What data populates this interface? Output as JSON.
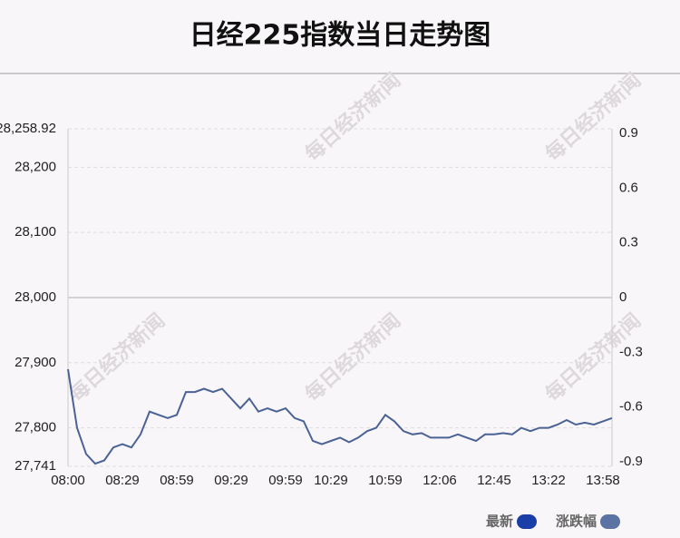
{
  "chart_data": {
    "type": "line",
    "title": "日经225指数当日走势图",
    "watermark": "每日经济新闻",
    "categories": [
      "08:00",
      null,
      null,
      null,
      null,
      null,
      "08:29",
      null,
      null,
      null,
      null,
      null,
      "08:59",
      null,
      null,
      null,
      null,
      null,
      "09:29",
      null,
      null,
      null,
      null,
      null,
      "09:59",
      null,
      null,
      null,
      null,
      "10:29",
      null,
      null,
      null,
      null,
      null,
      "10:59",
      null,
      null,
      null,
      null,
      null,
      "12:06",
      null,
      null,
      null,
      null,
      null,
      "12:45",
      null,
      null,
      null,
      null,
      null,
      "13:22",
      null,
      null,
      null,
      null,
      null,
      "13:58",
      null
    ],
    "series": [
      {
        "name": "最新",
        "color": "#4b6294",
        "values": [
          27890,
          27800,
          27760,
          27745,
          27750,
          27770,
          27775,
          27770,
          27790,
          27825,
          27820,
          27815,
          27820,
          27855,
          27855,
          27860,
          27855,
          27860,
          27845,
          27830,
          27845,
          27825,
          27830,
          27825,
          27830,
          27815,
          27810,
          27780,
          27775,
          27780,
          27785,
          27778,
          27785,
          27795,
          27800,
          27820,
          27810,
          27795,
          27790,
          27792,
          27785,
          27785,
          27785,
          27790,
          27785,
          27780,
          27790,
          27790,
          27792,
          27790,
          27800,
          27795,
          27800,
          27800,
          27805,
          27812,
          27805,
          27808,
          27805,
          27810,
          27815
        ]
      }
    ],
    "legend": [
      {
        "name": "最新",
        "color": "#1a3ea8"
      },
      {
        "name": "涨跌幅",
        "color": "#5b73a3"
      }
    ],
    "ylim": [
      27741,
      28258.92
    ],
    "yticks": [
      {
        "value": 27741,
        "label": "27,741"
      },
      {
        "value": 27800,
        "label": "27,800"
      },
      {
        "value": 27900,
        "label": "27,900"
      },
      {
        "value": 28000,
        "label": "28,000"
      },
      {
        "value": 28100,
        "label": "28,100"
      },
      {
        "value": 28200,
        "label": "28,200"
      },
      {
        "value": 28258.92,
        "label": "28,258.92"
      }
    ],
    "y2lim": [
      -0.925,
      0.925
    ],
    "y2ticks": [
      -0.9,
      -0.6,
      -0.3,
      0,
      0.3,
      0.6,
      0.9
    ],
    "grid": true
  }
}
